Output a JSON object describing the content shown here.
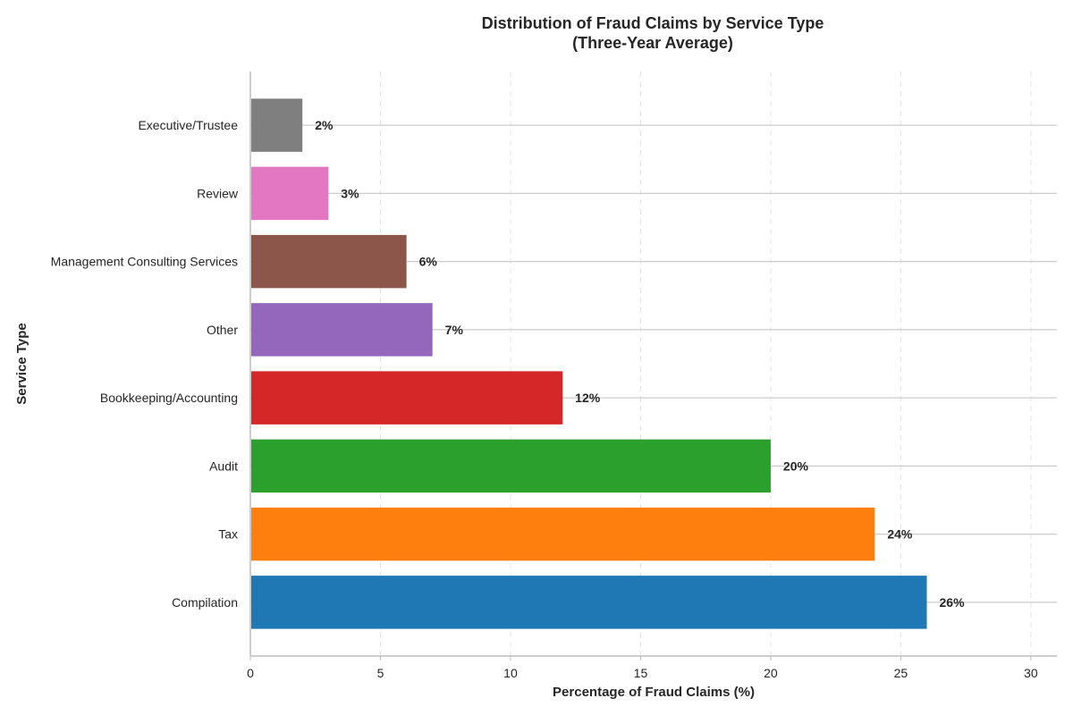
{
  "chart_data": {
    "type": "bar",
    "orientation": "horizontal",
    "title": "Distribution of Fraud Claims by Service Type",
    "subtitle": "(Three-Year Average)",
    "xlabel": "Percentage of Fraud Claims (%)",
    "ylabel": "Service Type",
    "xlim": [
      0,
      31
    ],
    "xticks": [
      0,
      5,
      10,
      15,
      20,
      25,
      30
    ],
    "grid": "x dashed",
    "value_suffix": "%",
    "categories": [
      "Compilation",
      "Tax",
      "Audit",
      "Bookkeeping/Accounting",
      "Other",
      "Management Consulting Services",
      "Review",
      "Executive/Trustee"
    ],
    "values": [
      26,
      24,
      20,
      12,
      7,
      6,
      3,
      2
    ],
    "value_labels": [
      "26%",
      "24%",
      "20%",
      "12%",
      "7%",
      "6%",
      "3%",
      "2%"
    ],
    "colors": [
      "#1f77b4",
      "#ff7f0e",
      "#2ca02c",
      "#d62728",
      "#9467bd",
      "#8c564b",
      "#e377c2",
      "#7f7f7f"
    ]
  }
}
